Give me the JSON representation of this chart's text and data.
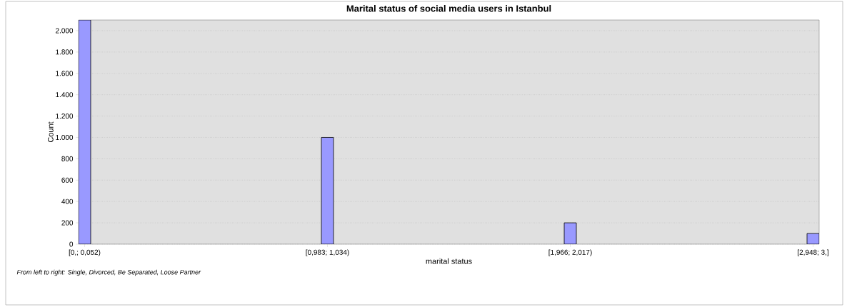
{
  "chart_data": {
    "type": "bar",
    "title": "Marital status of social media users in Istanbul",
    "categories": [
      "[0,; 0,052)",
      "[0,983; 1,034)",
      "[1,966; 2,017)",
      "[2,948; 3,]"
    ],
    "values": [
      2100,
      1000,
      200,
      100
    ],
    "color": "#9999ff",
    "xlabel": "marital status",
    "ylabel": "Count",
    "ylim": [
      0,
      2100
    ],
    "yticks": [
      0,
      200,
      400,
      600,
      800,
      {
        "value": 1000,
        "label": "1.000"
      },
      {
        "value": 1200,
        "label": "1.200"
      },
      {
        "value": 1400,
        "label": "1.400"
      },
      {
        "value": 1600,
        "label": "1.600"
      },
      {
        "value": 1800,
        "label": "1.800"
      },
      {
        "value": 2000,
        "label": "2.000"
      }
    ],
    "grid": "y",
    "annotations": [
      "From left to right: Single, Divorced, Be Separated, Loose Partner"
    ]
  }
}
